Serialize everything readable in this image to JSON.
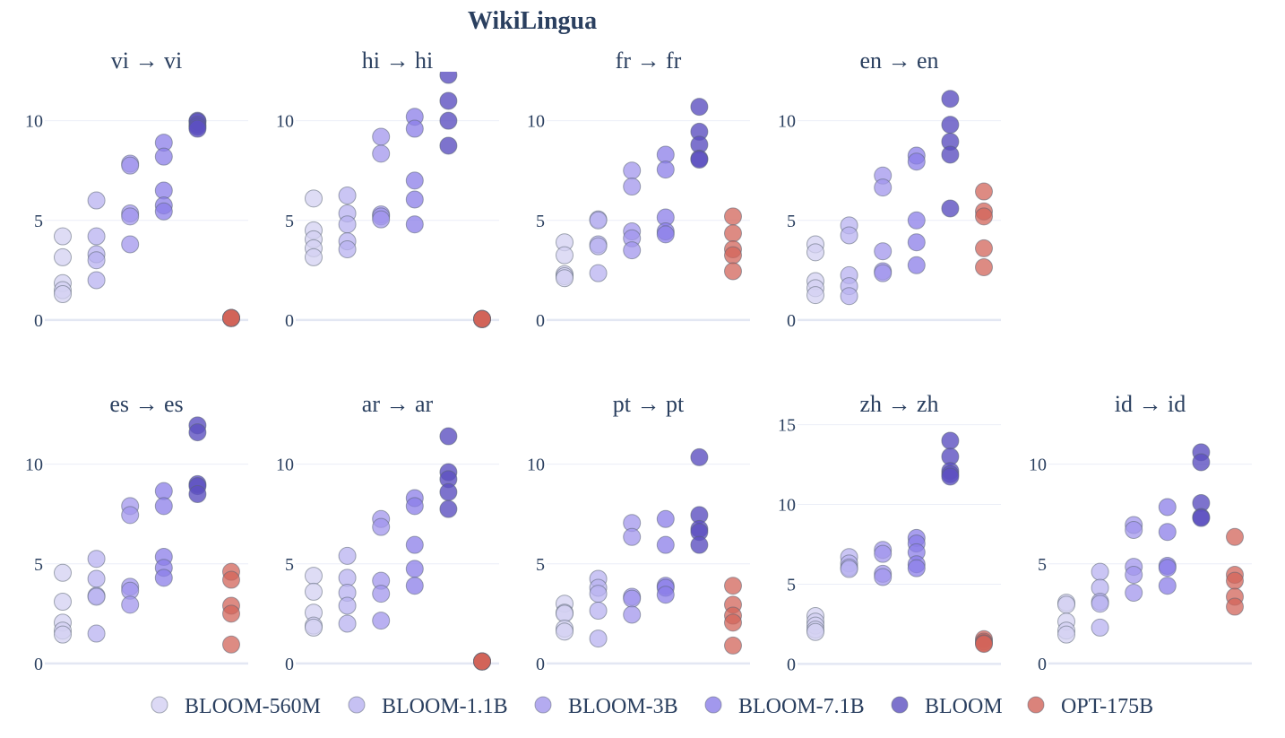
{
  "chart_data": {
    "type": "scatter",
    "title": "WikiLingua",
    "legend_placement": "bottom",
    "grid": true,
    "series_styles": [
      {
        "name": "BLOOM-560M",
        "color": "#d3d0f2"
      },
      {
        "name": "BLOOM-1.1B",
        "color": "#b8b1f0"
      },
      {
        "name": "BLOOM-3B",
        "color": "#a196ec"
      },
      {
        "name": "BLOOM-7.1B",
        "color": "#8b7ee8"
      },
      {
        "name": "BLOOM",
        "color": "#5d50c0"
      },
      {
        "name": "OPT-175B",
        "color": "#d1645a"
      }
    ],
    "panels": [
      {
        "title": "vi → vi",
        "ylim": [
          -0.5,
          12.1
        ],
        "yticks": [
          0,
          5,
          10
        ],
        "values": [
          [
            4.2,
            3.15,
            1.85,
            1.5,
            1.3
          ],
          [
            6.0,
            4.2,
            3.3,
            3.0,
            2.0
          ],
          [
            7.85,
            7.75,
            5.35,
            5.2,
            3.8
          ],
          [
            8.9,
            8.2,
            6.5,
            5.75,
            5.45
          ],
          [
            10.0,
            9.95,
            9.8,
            9.7,
            9.6
          ],
          [
            0.1,
            0.1,
            0.1,
            0.1,
            0.1
          ]
        ]
      },
      {
        "title": "hi → hi",
        "ylim": [
          -0.5,
          12.1
        ],
        "yticks": [
          0,
          5,
          10
        ],
        "values": [
          [
            6.1,
            4.5,
            4.05,
            3.6,
            3.15
          ],
          [
            6.25,
            5.35,
            4.8,
            3.95,
            3.55
          ],
          [
            9.2,
            8.35,
            5.3,
            5.2,
            5.05
          ],
          [
            10.2,
            9.6,
            7.0,
            6.05,
            4.8
          ],
          [
            12.3,
            11.0,
            10.0,
            8.75
          ],
          [
            0.05,
            0.05,
            0.05,
            0.05,
            0.05
          ]
        ]
      },
      {
        "title": "fr → fr",
        "ylim": [
          -0.5,
          12.1
        ],
        "yticks": [
          0,
          5,
          10
        ],
        "values": [
          [
            3.9,
            3.25,
            2.3,
            2.2,
            2.1
          ],
          [
            5.05,
            5.0,
            3.8,
            3.7,
            2.35
          ],
          [
            7.5,
            6.7,
            4.45,
            4.1,
            3.5
          ],
          [
            8.3,
            7.55,
            5.15,
            4.45,
            4.3
          ],
          [
            10.7,
            9.45,
            8.8,
            8.1,
            8.05
          ],
          [
            5.2,
            4.35,
            3.55,
            3.25,
            2.45
          ]
        ]
      },
      {
        "title": "en → en",
        "ylim": [
          -0.5,
          12.1
        ],
        "yticks": [
          0,
          5,
          10
        ],
        "values": [
          [
            3.8,
            3.4,
            1.95,
            1.6,
            1.25
          ],
          [
            4.75,
            4.25,
            2.25,
            1.7,
            1.2
          ],
          [
            7.25,
            6.65,
            3.45,
            2.45,
            2.35
          ],
          [
            8.25,
            7.95,
            5.0,
            3.9,
            2.75
          ],
          [
            11.1,
            9.8,
            8.95,
            8.3,
            5.6
          ],
          [
            6.45,
            5.45,
            5.2,
            3.6,
            2.65
          ]
        ]
      },
      {
        "title": "es → es",
        "ylim": [
          -0.5,
          12.1
        ],
        "yticks": [
          0,
          5,
          10
        ],
        "values": [
          [
            4.55,
            3.1,
            2.05,
            1.65,
            1.45
          ],
          [
            5.25,
            4.25,
            3.4,
            3.35,
            1.5
          ],
          [
            7.9,
            7.45,
            3.85,
            3.65,
            2.95
          ],
          [
            8.65,
            7.9,
            5.35,
            4.8,
            4.3
          ],
          [
            11.95,
            11.6,
            9.0,
            8.9,
            8.5
          ],
          [
            4.6,
            4.2,
            2.9,
            2.5,
            0.95
          ]
        ]
      },
      {
        "title": "ar → ar",
        "ylim": [
          -0.5,
          12.1
        ],
        "yticks": [
          0,
          5,
          10
        ],
        "values": [
          [
            4.4,
            3.6,
            2.55,
            1.9,
            1.8
          ],
          [
            5.4,
            4.3,
            3.55,
            2.9,
            2.0
          ],
          [
            7.25,
            6.85,
            4.15,
            3.5,
            2.15
          ],
          [
            8.3,
            7.9,
            5.95,
            4.75,
            3.9
          ],
          [
            11.4,
            9.6,
            9.25,
            8.6,
            7.75
          ],
          [
            0.1,
            0.1,
            0.1,
            0.1,
            0.1
          ]
        ]
      },
      {
        "title": "pt → pt",
        "ylim": [
          -0.5,
          12.1
        ],
        "yticks": [
          0,
          5,
          10
        ],
        "values": [
          [
            3.0,
            2.55,
            2.5,
            1.75,
            1.6
          ],
          [
            4.25,
            3.8,
            3.5,
            2.65,
            1.25
          ],
          [
            7.05,
            6.35,
            3.35,
            3.25,
            2.45
          ],
          [
            7.25,
            5.95,
            3.9,
            3.8,
            3.45
          ],
          [
            10.35,
            7.45,
            6.75,
            6.6,
            5.95
          ],
          [
            3.9,
            2.95,
            2.4,
            2.05,
            0.9
          ]
        ]
      },
      {
        "title": "zh → zh",
        "ylim": [
          -0.6,
          15.15
        ],
        "yticks": [
          0,
          5,
          10,
          15
        ],
        "values": [
          [
            3.0,
            2.65,
            2.4,
            2.15,
            2.0
          ],
          [
            6.7,
            6.3,
            6.05,
            5.95
          ],
          [
            7.15,
            6.9,
            5.65,
            5.45
          ],
          [
            7.9,
            7.55,
            7.0,
            6.25,
            6.0
          ],
          [
            14.0,
            13.0,
            12.1,
            11.9,
            11.75
          ],
          [
            1.55,
            1.4,
            1.3,
            1.25
          ]
        ]
      },
      {
        "title": "id → id",
        "ylim": [
          -0.5,
          12.1
        ],
        "yticks": [
          0,
          5,
          10
        ],
        "values": [
          [
            3.05,
            2.95,
            2.1,
            1.65,
            1.45
          ],
          [
            4.6,
            3.8,
            3.1,
            3.0,
            1.8
          ],
          [
            6.95,
            6.7,
            4.85,
            4.45,
            3.55
          ],
          [
            7.85,
            6.6,
            4.9,
            4.8,
            3.9
          ],
          [
            10.6,
            10.1,
            8.05,
            7.35,
            7.3
          ],
          [
            6.35,
            4.45,
            4.15,
            3.35,
            2.85
          ]
        ]
      }
    ]
  }
}
